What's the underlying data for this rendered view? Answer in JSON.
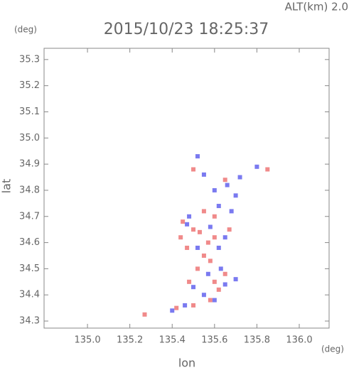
{
  "chart_data": {
    "type": "scatter",
    "title": "2015/10/23 18:25:37",
    "subtitle": "ALT(km) 2.0",
    "x_label": "lon",
    "x_unit": "(deg)",
    "y_label": "lat",
    "y_unit": "(deg)",
    "xlim": [
      134.795,
      136.141
    ],
    "ylim": [
      34.273,
      35.343
    ],
    "xticks": [
      {
        "value": 135,
        "label": "135.0"
      },
      135.2,
      135.4,
      135.6,
      135.8,
      {
        "value": 136,
        "label": "136.0"
      }
    ],
    "yticks": [
      34.3,
      34.4,
      34.5,
      34.6,
      34.7,
      34.8,
      34.9,
      {
        "value": 35,
        "label": "35.0"
      },
      35.1,
      35.2,
      35.3
    ],
    "grid": false,
    "series": [
      {
        "color": "#f08a8a",
        "x": [
          135.27,
          135.42,
          135.5,
          135.58,
          135.48,
          135.52,
          135.55,
          135.57,
          135.6,
          135.5,
          135.45,
          135.6,
          135.55,
          135.65,
          135.62,
          135.47,
          135.53,
          135.58,
          135.67,
          135.5,
          135.85,
          135.65,
          135.44,
          135.6
        ],
        "values": [
          34.325,
          34.35,
          34.36,
          34.38,
          34.45,
          34.5,
          34.55,
          34.6,
          34.62,
          34.65,
          34.68,
          34.7,
          34.72,
          34.48,
          34.42,
          34.58,
          34.64,
          34.53,
          34.65,
          34.88,
          34.88,
          34.84,
          34.62,
          34.45
        ]
      },
      {
        "color": "#7a7af0",
        "x": [
          135.4,
          135.46,
          135.55,
          135.6,
          135.65,
          135.63,
          135.57,
          135.5,
          135.62,
          135.52,
          135.65,
          135.58,
          135.48,
          135.62,
          135.68,
          135.6,
          135.7,
          135.72,
          135.66,
          135.8,
          135.52,
          135.55,
          135.47,
          135.7
        ],
        "values": [
          34.34,
          34.36,
          34.4,
          34.38,
          34.44,
          34.5,
          34.48,
          34.43,
          34.58,
          34.58,
          34.62,
          34.66,
          34.7,
          34.74,
          34.72,
          34.8,
          34.78,
          34.85,
          34.82,
          34.89,
          34.93,
          34.86,
          34.67,
          34.46
        ]
      }
    ]
  }
}
